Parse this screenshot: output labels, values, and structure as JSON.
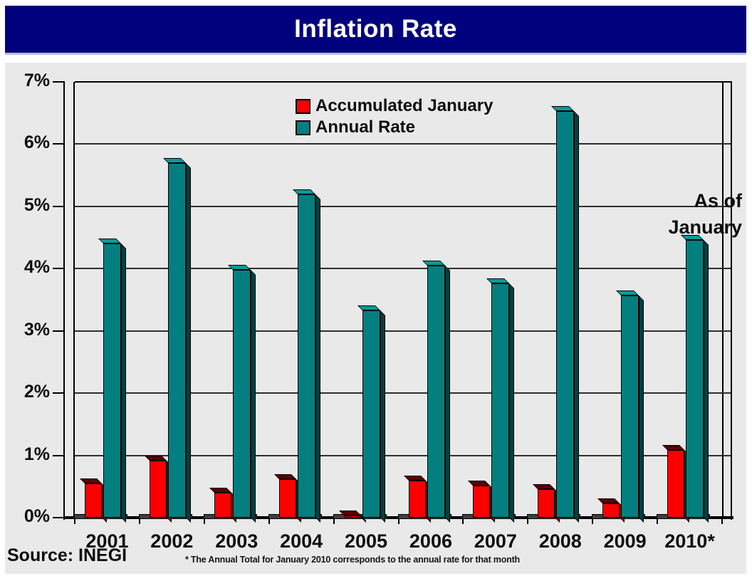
{
  "title": "Inflation Rate",
  "legend": {
    "items": [
      {
        "label": "Accumulated January",
        "color": "#fc0000"
      },
      {
        "label": "Annual Rate",
        "color": "#037f7f"
      }
    ]
  },
  "annotation": {
    "line1": "As of",
    "line2": "January"
  },
  "source_label": "Source:  INEGI",
  "footnote": "* The Annual Total for January 2010 corresponds to the annual rate for that month",
  "chart_data": {
    "type": "bar",
    "title": "Inflation Rate",
    "categories": [
      "2001",
      "2002",
      "2003",
      "2004",
      "2005",
      "2006",
      "2007",
      "2008",
      "2009",
      "2010*"
    ],
    "series": [
      {
        "name": "Accumulated January",
        "color": "#fc0000",
        "values": [
          0.55,
          0.92,
          0.4,
          0.62,
          0.03,
          0.59,
          0.52,
          0.46,
          0.23,
          1.09
        ]
      },
      {
        "name": "Annual Rate",
        "color": "#037f7f",
        "values": [
          4.4,
          5.7,
          3.98,
          5.19,
          3.33,
          4.05,
          3.76,
          6.53,
          3.57,
          4.46
        ]
      }
    ],
    "xlabel": "",
    "ylabel": "",
    "ylim": [
      0,
      7
    ],
    "yticks": [
      "0%",
      "1%",
      "2%",
      "3%",
      "4%",
      "5%",
      "6%",
      "7%"
    ],
    "grid": true,
    "legend_position": "top-center",
    "annotation": "As of January",
    "source": "Source: INEGI"
  }
}
